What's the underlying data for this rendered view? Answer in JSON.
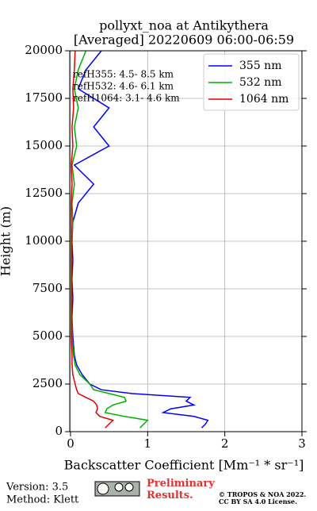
{
  "chart_data": {
    "type": "line",
    "title": "pollyxt_noa at Antikythera",
    "subtitle": "[Averaged] 20220609 06:00-06:59",
    "x_label": "Backscatter Coefficient [Mm⁻¹ * sr⁻¹]",
    "y_label": "Height (m)",
    "annotations": [
      "refH355:  4.5- 8.5 km",
      "refH532:  4.6- 6.1 km",
      "refH1064:  3.1- 4.6 km"
    ],
    "heights": [
      200,
      400,
      600,
      800,
      1000,
      1200,
      1400,
      1600,
      1800,
      2000,
      2200,
      2500,
      3000,
      3500,
      4000,
      5000,
      6000,
      7000,
      8000,
      9000,
      10000,
      11000,
      12000,
      13000,
      14000,
      15000,
      16000,
      17000,
      18000,
      19000,
      20000
    ],
    "series": [
      {
        "name": "355 nm",
        "color": "#0000ff",
        "values": [
          1.7,
          1.75,
          1.78,
          1.6,
          1.2,
          1.3,
          1.6,
          1.5,
          1.55,
          0.8,
          0.4,
          0.25,
          0.15,
          0.08,
          0.05,
          0.03,
          0.02,
          0.03,
          0.02,
          0.03,
          0.02,
          0.03,
          0.1,
          0.3,
          0.05,
          0.5,
          0.3,
          0.5,
          0.1,
          0.2,
          0.4
        ]
      },
      {
        "name": "532 nm",
        "color": "#00b000",
        "values": [
          0.9,
          0.95,
          1.0,
          0.7,
          0.45,
          0.47,
          0.55,
          0.72,
          0.7,
          0.5,
          0.3,
          0.25,
          0.12,
          0.06,
          0.04,
          0.02,
          0.02,
          0.01,
          0.02,
          0.01,
          0.02,
          0.03,
          0.02,
          0.05,
          0.02,
          0.08,
          0.05,
          0.1,
          0.05,
          0.1,
          0.2
        ]
      },
      {
        "name": "1064 nm",
        "color": "#e00000",
        "values": [
          0.45,
          0.5,
          0.55,
          0.38,
          0.33,
          0.35,
          0.34,
          0.3,
          0.2,
          0.1,
          0.08,
          0.06,
          0.03,
          0.02,
          0.02,
          0.01,
          0.01,
          0.01,
          0.01,
          0.01,
          0.01,
          0.01,
          0.01,
          0.02,
          0.01,
          0.03,
          0.02,
          0.04,
          0.03,
          0.05,
          0.06
        ]
      }
    ],
    "xlim": [
      -0.01,
      3
    ],
    "ylim": [
      0,
      20000
    ],
    "xticks": [
      0,
      1,
      2,
      3
    ],
    "yticks": [
      0,
      2500,
      5000,
      7500,
      10000,
      12500,
      15000,
      17500,
      20000
    ],
    "grid": true,
    "legend": "upper right"
  },
  "footer": {
    "version": "Version: 3.5",
    "method": "Method: Klett",
    "preliminary": "Preliminary Results.",
    "copyright": "© TROPOS & NOA 2022.",
    "license": "CC BY SA 4.0 License."
  }
}
